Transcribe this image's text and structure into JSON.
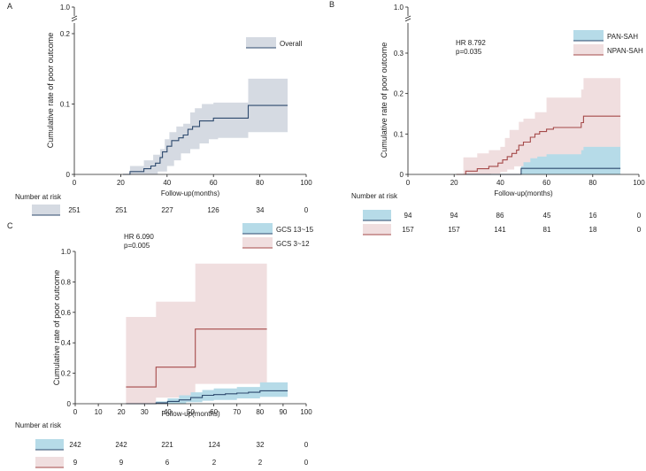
{
  "colors": {
    "overall_line": "#2e4a6e",
    "overall_band": "#d5dae2",
    "blue_line": "#2e4a6e",
    "blue_band": "#b6dbe8",
    "red_line": "#a54a4a",
    "red_band": "#f0dedf",
    "axis": "#222222"
  },
  "chart_data": [
    {
      "type": "line",
      "panel_label": "A",
      "title": "",
      "xlabel": "Follow-up(months)",
      "ylabel": "Cumulative rate of poor outcome",
      "xlim": [
        0,
        100
      ],
      "ylim": [
        0,
        0.2
      ],
      "ylim_broken_top": 1.0,
      "x_ticks": [
        "0",
        "20",
        "40",
        "60",
        "80",
        "100"
      ],
      "y_ticks": [
        "0",
        "0.1",
        "0.2"
      ],
      "y_top_label": "1.0",
      "annotation": [],
      "legend": [
        {
          "name": "Overall",
          "color_key": "overall"
        }
      ],
      "series": [
        {
          "name": "Overall",
          "color_key": "overall",
          "steps": [
            [
              21,
              0
            ],
            [
              24,
              0.004
            ],
            [
              30,
              0.008
            ],
            [
              33,
              0.012
            ],
            [
              35,
              0.016
            ],
            [
              37,
              0.024
            ],
            [
              38,
              0.032
            ],
            [
              40,
              0.04
            ],
            [
              42,
              0.048
            ],
            [
              45,
              0.052
            ],
            [
              47,
              0.056
            ],
            [
              49,
              0.064
            ],
            [
              51,
              0.068
            ],
            [
              54,
              0.076
            ],
            [
              60,
              0.08
            ],
            [
              75,
              0.098
            ],
            [
              92,
              0.098
            ]
          ],
          "upper": [
            [
              21,
              0
            ],
            [
              24,
              0.012
            ],
            [
              30,
              0.02
            ],
            [
              34,
              0.028
            ],
            [
              37,
              0.036
            ],
            [
              39,
              0.05
            ],
            [
              41,
              0.06
            ],
            [
              44,
              0.068
            ],
            [
              47,
              0.072
            ],
            [
              50,
              0.088
            ],
            [
              52,
              0.094
            ],
            [
              55,
              0.1
            ],
            [
              60,
              0.102
            ],
            [
              75,
              0.136
            ],
            [
              92,
              0.136
            ]
          ],
          "lower": [
            [
              21,
              0
            ],
            [
              24,
              0
            ],
            [
              30,
              0
            ],
            [
              36,
              0.004
            ],
            [
              40,
              0.012
            ],
            [
              43,
              0.02
            ],
            [
              46,
              0.03
            ],
            [
              50,
              0.036
            ],
            [
              54,
              0.044
            ],
            [
              58,
              0.05
            ],
            [
              62,
              0.052
            ],
            [
              75,
              0.06
            ],
            [
              92,
              0.06
            ]
          ]
        }
      ],
      "risk_table": {
        "title": "Number at risk",
        "columns": [
          "251",
          "251",
          "227",
          "126",
          "34",
          "0"
        ],
        "rows": [
          {
            "color_key": "overall",
            "values": [
              "251",
              "251",
              "227",
              "126",
              "34",
              "0"
            ]
          }
        ]
      }
    },
    {
      "type": "line",
      "panel_label": "B",
      "title": "",
      "xlabel": "Follow-up(months)",
      "ylabel": "Cumulative rate of poor outcome",
      "xlim": [
        0,
        100
      ],
      "ylim": [
        0,
        0.3
      ],
      "ylim_broken_top": 1.0,
      "x_ticks": [
        "0",
        "20",
        "40",
        "60",
        "80",
        "100"
      ],
      "y_ticks": [
        "0",
        "0.1",
        "0.2",
        "0.3"
      ],
      "y_top_label": "1.0",
      "annotation": [
        "HR 8.792",
        "p=0.035"
      ],
      "legend": [
        {
          "name": "PAN-SAH",
          "color_key": "blue"
        },
        {
          "name": "NPAN-SAH",
          "color_key": "red"
        }
      ],
      "series": [
        {
          "name": "PAN-SAH",
          "color_key": "blue",
          "steps": [
            [
              21,
              0
            ],
            [
              49,
              0
            ],
            [
              49,
              0.015
            ],
            [
              92,
              0.015
            ]
          ],
          "upper": [
            [
              21,
              0
            ],
            [
              49,
              0
            ],
            [
              49,
              0.062
            ],
            [
              55,
              0.062
            ],
            [
              55,
              0.078
            ],
            [
              60,
              0.078
            ],
            [
              60,
              0.085
            ],
            [
              92,
              0.085
            ]
          ],
          "lower": [
            [
              21,
              0
            ],
            [
              92,
              0
            ]
          ]
        },
        {
          "name": "NPAN-SAH",
          "color_key": "red",
          "steps": [
            [
              21,
              0
            ],
            [
              25,
              0.008
            ],
            [
              30,
              0.014
            ],
            [
              35,
              0.02
            ],
            [
              39,
              0.028
            ],
            [
              41,
              0.036
            ],
            [
              43,
              0.044
            ],
            [
              45,
              0.052
            ],
            [
              47,
              0.06
            ],
            [
              48,
              0.072
            ],
            [
              50,
              0.08
            ],
            [
              53,
              0.092
            ],
            [
              55,
              0.1
            ],
            [
              57,
              0.106
            ],
            [
              60,
              0.112
            ],
            [
              63,
              0.116
            ],
            [
              75,
              0.128
            ],
            [
              76,
              0.144
            ],
            [
              92,
              0.144
            ]
          ],
          "upper": [
            [
              21,
              0
            ],
            [
              24,
              0.042
            ],
            [
              30,
              0.052
            ],
            [
              35,
              0.06
            ],
            [
              40,
              0.068
            ],
            [
              42,
              0.09
            ],
            [
              44,
              0.11
            ],
            [
              48,
              0.13
            ],
            [
              50,
              0.138
            ],
            [
              55,
              0.154
            ],
            [
              60,
              0.19
            ],
            [
              75,
              0.21
            ],
            [
              76,
              0.238
            ],
            [
              92,
              0.238
            ]
          ],
          "lower": [
            [
              21,
              0
            ],
            [
              30,
              0
            ],
            [
              36,
              0.002
            ],
            [
              40,
              0.006
            ],
            [
              43,
              0.012
            ],
            [
              46,
              0.02
            ],
            [
              50,
              0.03
            ],
            [
              53,
              0.04
            ],
            [
              56,
              0.044
            ],
            [
              60,
              0.05
            ],
            [
              75,
              0.06
            ],
            [
              76,
              0.068
            ],
            [
              92,
              0.068
            ]
          ]
        }
      ],
      "risk_table": {
        "title": "Number at risk",
        "rows": [
          {
            "color_key": "blue",
            "values": [
              "94",
              "94",
              "86",
              "45",
              "16",
              "0"
            ]
          },
          {
            "color_key": "red",
            "values": [
              "157",
              "157",
              "141",
              "81",
              "18",
              "0"
            ]
          }
        ]
      }
    },
    {
      "type": "line",
      "panel_label": "C",
      "title": "",
      "xlabel": "Follow-up(months)",
      "ylabel": "Cumulative rate of poor outcome",
      "xlim": [
        0,
        100
      ],
      "ylim": [
        0,
        1.0
      ],
      "x_ticks": [
        "0",
        "10",
        "20",
        "30",
        "40",
        "50",
        "60",
        "70",
        "80",
        "90",
        "100"
      ],
      "y_ticks": [
        "0",
        "0.2",
        "0.4",
        "0.6",
        "0.8",
        "1.0"
      ],
      "annotation": [
        "HR 6.090",
        "p=0.005"
      ],
      "legend": [
        {
          "name": "GCS 13~15",
          "color_key": "blue"
        },
        {
          "name": "GCS 3~12",
          "color_key": "red"
        }
      ],
      "series": [
        {
          "name": "GCS 3~12",
          "color_key": "red",
          "steps": [
            [
              22,
              0.11
            ],
            [
              35,
              0.11
            ],
            [
              35,
              0.24
            ],
            [
              52,
              0.24
            ],
            [
              52,
              0.49
            ],
            [
              83,
              0.49
            ]
          ],
          "upper": [
            [
              22,
              0.57
            ],
            [
              35,
              0.57
            ],
            [
              35,
              0.67
            ],
            [
              52,
              0.67
            ],
            [
              52,
              0.92
            ],
            [
              83,
              0.92
            ]
          ],
          "lower": [
            [
              22,
              0.0
            ],
            [
              35,
              0.0
            ],
            [
              35,
              0.04
            ],
            [
              52,
              0.04
            ],
            [
              52,
              0.13
            ],
            [
              83,
              0.13
            ]
          ]
        },
        {
          "name": "GCS 13~15",
          "color_key": "blue",
          "steps": [
            [
              22,
              0
            ],
            [
              35,
              0.005
            ],
            [
              40,
              0.015
            ],
            [
              45,
              0.025
            ],
            [
              50,
              0.04
            ],
            [
              55,
              0.055
            ],
            [
              60,
              0.06
            ],
            [
              65,
              0.065
            ],
            [
              70,
              0.07
            ],
            [
              75,
              0.075
            ],
            [
              80,
              0.085
            ],
            [
              92,
              0.085
            ]
          ],
          "upper": [
            [
              22,
              0
            ],
            [
              35,
              0.015
            ],
            [
              40,
              0.035
            ],
            [
              45,
              0.055
            ],
            [
              50,
              0.075
            ],
            [
              55,
              0.09
            ],
            [
              60,
              0.1
            ],
            [
              70,
              0.11
            ],
            [
              80,
              0.14
            ],
            [
              92,
              0.14
            ]
          ],
          "lower": [
            [
              22,
              0
            ],
            [
              40,
              0
            ],
            [
              48,
              0.01
            ],
            [
              55,
              0.02
            ],
            [
              60,
              0.025
            ],
            [
              70,
              0.035
            ],
            [
              80,
              0.045
            ],
            [
              92,
              0.045
            ]
          ]
        }
      ],
      "risk_table": {
        "title": "Number at risk",
        "rows": [
          {
            "color_key": "blue",
            "values": [
              "242",
              "242",
              "221",
              "124",
              "32",
              "0"
            ]
          },
          {
            "color_key": "red",
            "values": [
              "9",
              "9",
              "6",
              "2",
              "2",
              "0"
            ]
          }
        ]
      }
    }
  ]
}
